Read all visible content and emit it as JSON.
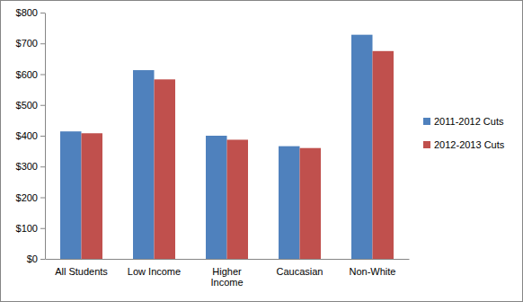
{
  "chart_data": {
    "type": "bar",
    "categories": [
      "All Students",
      "Low Income",
      "Higher Income",
      "Caucasian",
      "Non-White"
    ],
    "series": [
      {
        "name": "2011-2012 Cuts",
        "color": "#4f81bd",
        "values": [
          414,
          613,
          400,
          366,
          728
        ]
      },
      {
        "name": "2012-2013 Cuts",
        "color": "#c0504d",
        "values": [
          408,
          583,
          387,
          360,
          675
        ]
      }
    ],
    "ylim": [
      0,
      800
    ],
    "yticks": [
      {
        "value": 0,
        "label": "$0"
      },
      {
        "value": 100,
        "label": "$100"
      },
      {
        "value": 200,
        "label": "$200"
      },
      {
        "value": 300,
        "label": "$300"
      },
      {
        "value": 400,
        "label": "$400"
      },
      {
        "value": 500,
        "label": "$500"
      },
      {
        "value": 600,
        "label": "$600"
      },
      {
        "value": 700,
        "label": "$700"
      },
      {
        "value": 800,
        "label": "$800"
      }
    ],
    "grid": false,
    "legend": "right"
  }
}
